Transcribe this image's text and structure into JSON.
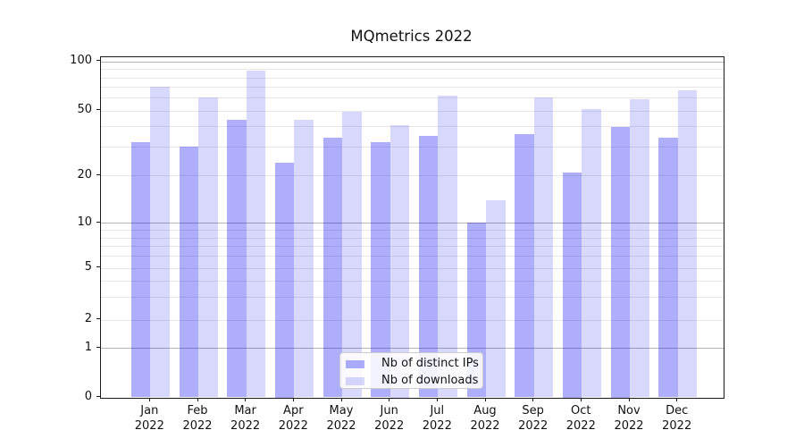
{
  "chart_data": {
    "type": "bar",
    "title": "MQmetrics 2022",
    "categories": [
      "Jan",
      "Feb",
      "Mar",
      "Apr",
      "May",
      "Jun",
      "Jul",
      "Aug",
      "Sep",
      "Oct",
      "Nov",
      "Dec"
    ],
    "category_year": "2022",
    "series": [
      {
        "name": "Nb of distinct IPs",
        "color": "rgba(8,8,240,0.33)",
        "values": [
          32,
          30,
          44,
          24,
          34,
          32,
          35,
          10,
          36,
          21,
          40,
          34
        ]
      },
      {
        "name": "Nb of downloads",
        "color": "rgba(8,8,240,0.155)",
        "values": [
          70,
          60,
          88,
          44,
          49,
          41,
          62,
          14,
          60,
          51,
          59,
          67
        ]
      }
    ],
    "xlabel": "",
    "ylabel": "",
    "yscale": "symlog",
    "ylim": [
      0,
      110
    ],
    "y_ticks": [
      0,
      1,
      2,
      5,
      10,
      20,
      50,
      100
    ],
    "grid": "horizontal",
    "legend_position": "lower center"
  },
  "colors": {
    "ips_bar_on_white": "#acacfa",
    "downloads_bar_on_white": "#d9d9fa",
    "major_gridline": "#b4b4b4",
    "minor_gridline": "#e8e8e8",
    "axis": "#1a1a1a",
    "legend_border": "#cccccc"
  }
}
